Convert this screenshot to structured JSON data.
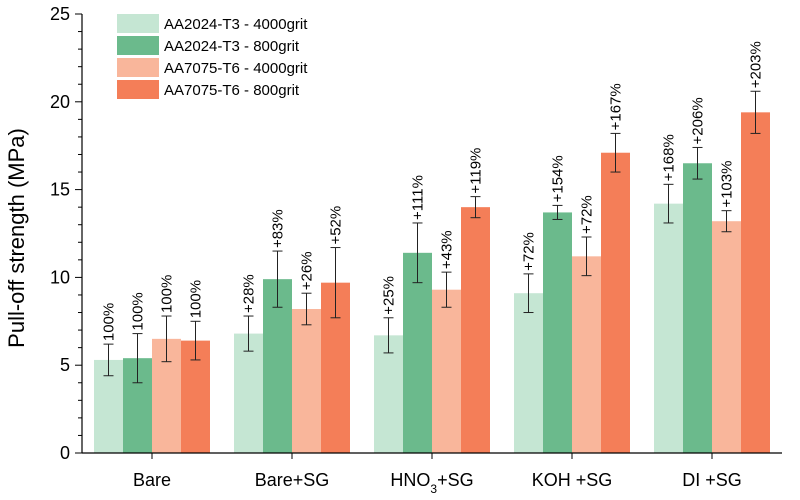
{
  "chart_data": {
    "type": "bar",
    "ylabel": "Pull-off strength (MPa)",
    "xlabel": "",
    "ylim": [
      0,
      25
    ],
    "yticks": [
      "0",
      "5",
      "10",
      "15",
      "20",
      "25"
    ],
    "categories": [
      "Bare",
      "Bare+SG",
      "HNO3+SG",
      "KOH +SG",
      "DI +SG"
    ],
    "category_labels": [
      {
        "pre": "Bare",
        "sub": "",
        "post": ""
      },
      {
        "pre": "Bare+SG",
        "sub": "",
        "post": ""
      },
      {
        "pre": "HNO",
        "sub": "3",
        "post": "+SG"
      },
      {
        "pre": "KOH +SG",
        "sub": "",
        "post": ""
      },
      {
        "pre": "DI +SG",
        "sub": "",
        "post": ""
      }
    ],
    "legend_position": "top-left",
    "grid": false,
    "series": [
      {
        "name": "AA2024-T3 - 4000grit",
        "color": "#c5e6d3",
        "values": [
          5.3,
          6.8,
          6.7,
          9.1,
          14.2
        ],
        "errors": [
          0.9,
          1.0,
          1.0,
          1.1,
          1.1
        ],
        "labels": [
          "100%",
          "+28%",
          "+25%",
          "+72%",
          "+168%"
        ]
      },
      {
        "name": "AA2024-T3 - 800grit",
        "color": "#6bba8c",
        "values": [
          5.4,
          9.9,
          11.4,
          13.7,
          16.5
        ],
        "errors": [
          1.4,
          1.6,
          1.7,
          0.4,
          0.9
        ],
        "labels": [
          "100%",
          "+83%",
          "+111%",
          "+154%",
          "+206%"
        ]
      },
      {
        "name": "AA7075-T6 - 4000grit",
        "color": "#f9b69b",
        "values": [
          6.5,
          8.2,
          9.3,
          11.2,
          13.2
        ],
        "errors": [
          1.3,
          0.9,
          1.0,
          1.1,
          0.6
        ],
        "labels": [
          "100%",
          "+26%",
          "+43%",
          "+72%",
          "+103%"
        ]
      },
      {
        "name": "AA7075-T6 - 800grit",
        "color": "#f47e58",
        "values": [
          6.4,
          9.7,
          14.0,
          17.1,
          19.4
        ],
        "errors": [
          1.1,
          2.0,
          0.6,
          1.1,
          1.2
        ],
        "labels": [
          "100%",
          "+52%",
          "+119%",
          "+167%",
          "+203%"
        ]
      }
    ]
  }
}
